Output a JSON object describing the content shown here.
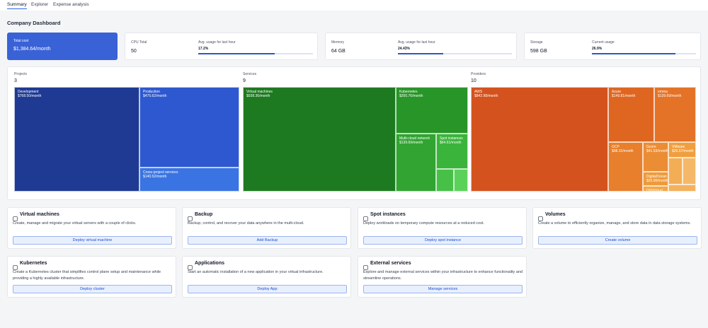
{
  "tabs": [
    "Summary",
    "Explorer",
    "Expense analysis"
  ],
  "header": {
    "title": "Company Dashboard"
  },
  "total": {
    "label": "Total cost",
    "value": "$1,384.64/month"
  },
  "metrics": [
    {
      "label": "CPU Total",
      "value": "50",
      "usage_label": "Avg. usage for last hour",
      "usage": "17.2%"
    },
    {
      "label": "Memory",
      "value": "64 GB",
      "usage_label": "Avg. usage for last hour",
      "usage": "24.43%"
    },
    {
      "label": "Storage",
      "value": "598 GB",
      "usage_label": "Current usage",
      "usage": "26.9%"
    }
  ],
  "treemaps": [
    {
      "label": "Projects",
      "count": "3",
      "items": [
        {
          "name": "Development",
          "cost": "$768.50/month"
        },
        {
          "name": "Production",
          "cost": "$475.62/month"
        },
        {
          "name": "Cross-project services",
          "cost": "$140.52/month"
        }
      ]
    },
    {
      "label": "Services",
      "count": "9",
      "items": [
        {
          "name": "Virtual machines",
          "cost": "$938.36/month"
        },
        {
          "name": "Kubernetes",
          "cost": "$200.76/month"
        },
        {
          "name": "Multi-cloud network",
          "cost": "$139.69/month"
        },
        {
          "name": "Spot instances",
          "cost": "$64.61/month"
        }
      ]
    },
    {
      "label": "Providers",
      "count": "10",
      "items": [
        {
          "name": "AWS",
          "cost": "$842.98/month"
        },
        {
          "name": "Azure",
          "cost": "$149.81/month"
        },
        {
          "name": "emma",
          "cost": "$139.69/month"
        },
        {
          "name": "GCP",
          "cost": "$98.31/month"
        },
        {
          "name": "Gcore",
          "cost": "$41.53/month"
        },
        {
          "name": "VMware",
          "cost": "$26.57/month"
        },
        {
          "name": "DigitalOcean",
          "cost": "$29.00/month"
        },
        {
          "name": "OVHcloud"
        }
      ]
    }
  ],
  "actions": [
    {
      "title": "Virtual machines",
      "description": "Create, manage and migrate your virtual servers with a couple of clicks.",
      "button": "Deploy virtual machine"
    },
    {
      "title": "Backup",
      "description": "Backup, control, and recover your data anywhere in the multi-cloud.",
      "button": "Add Backup"
    },
    {
      "title": "Spot instances",
      "description": "Deploy workloads on temporary compute resources at a reduced cost.",
      "button": "Deploy spot instance"
    },
    {
      "title": "Volumes",
      "description": "Create a volume to efficiently organize, manage, and store data in data storage systems.",
      "button": "Create volume"
    },
    {
      "title": "Kubernetes",
      "description": "Create a Kubernetes cluster that simplifies control plane setup and maintenance while providing a highly available infrastructure.",
      "button": "Deploy cluster"
    },
    {
      "title": "Applications",
      "description": "Start an automatic installation of a new application in your virtual infrastructure.",
      "button": "Deploy App"
    },
    {
      "title": "External services",
      "description": "Explore and manage external services within your infrastructure to enhance functionality and streamline operations.",
      "button": "Manage services"
    }
  ]
}
